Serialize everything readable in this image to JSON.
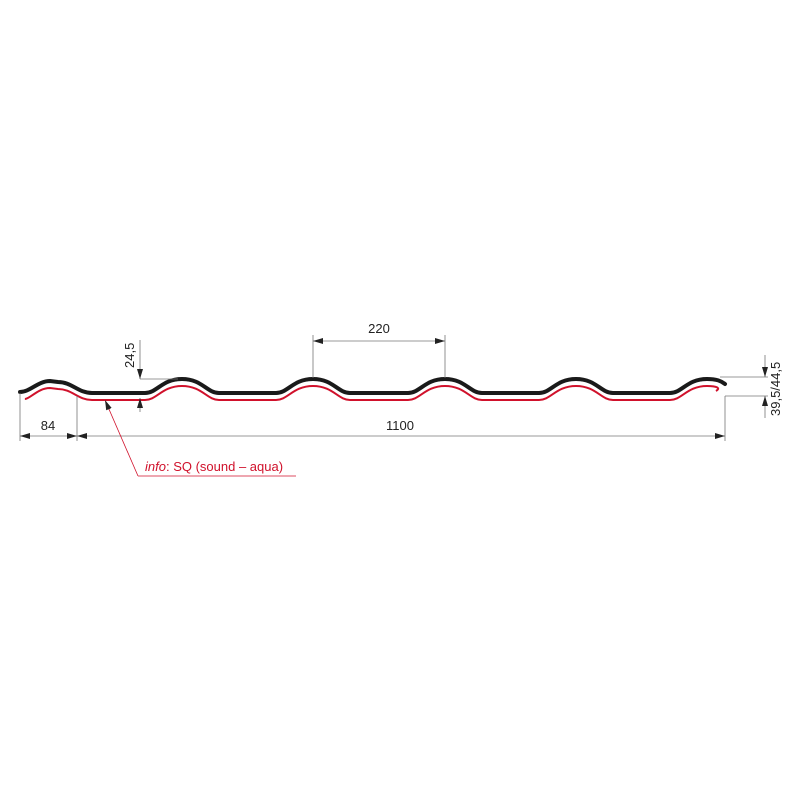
{
  "dimensions": {
    "pitch": "220",
    "wave_height": "24,5",
    "end_overlap": "84",
    "covering_width": "1100",
    "total_height": "39,5/44,5"
  },
  "info": {
    "label_italic": "info",
    "label_rest": ": SQ (sound – aqua)"
  },
  "colors": {
    "profile": "#1a1a1a",
    "coating": "#d0112b",
    "dimension": "#555555"
  }
}
